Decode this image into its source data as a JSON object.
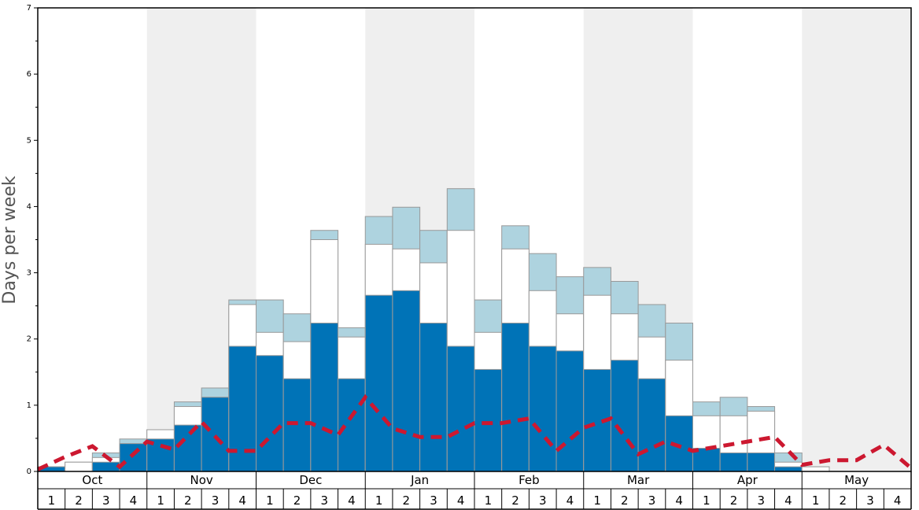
{
  "chart_data": {
    "type": "bar",
    "ylabel": "Days per week",
    "ylim": [
      0,
      7
    ],
    "yticks": [
      0,
      1,
      2,
      3,
      4,
      5,
      6,
      7
    ],
    "months": [
      "Oct",
      "Nov",
      "Dec",
      "Jan",
      "Feb",
      "Mar",
      "Apr",
      "May"
    ],
    "weeks": [
      "1",
      "2",
      "3",
      "4"
    ],
    "shaded_months": [
      "Nov",
      "Jan",
      "Mar",
      "May"
    ],
    "colors": {
      "base": "#0073b7",
      "middle": "#ffffff",
      "top": "#aed3df",
      "dashed": "#cc1830",
      "shade": "#efefef"
    },
    "series": [
      {
        "values": [
          0.07,
          0.0,
          0.14,
          0.42,
          0.49,
          0.7,
          1.12,
          1.89,
          1.75,
          1.4,
          2.24,
          1.4,
          2.66,
          2.73,
          2.24,
          1.89,
          1.54,
          2.24,
          1.89,
          1.82,
          1.54,
          1.68,
          1.4,
          0.84,
          0.35,
          0.28,
          0.28,
          0.07,
          0.0,
          0.0,
          0.0,
          0.0
        ]
      },
      {
        "values": [
          0.07,
          0.14,
          0.21,
          0.42,
          0.63,
          0.98,
          1.12,
          2.52,
          2.1,
          1.96,
          3.5,
          2.03,
          3.43,
          3.36,
          3.15,
          3.64,
          2.1,
          3.36,
          2.73,
          2.38,
          2.66,
          2.38,
          2.03,
          1.68,
          0.84,
          0.84,
          0.91,
          0.14,
          0.07,
          0.0,
          0.0,
          0.0
        ]
      },
      {
        "values": [
          0.07,
          0.14,
          0.28,
          0.49,
          0.63,
          1.05,
          1.26,
          2.59,
          2.59,
          2.38,
          3.64,
          2.17,
          3.85,
          3.99,
          3.64,
          4.27,
          2.59,
          3.71,
          3.29,
          2.94,
          3.08,
          2.87,
          2.52,
          2.24,
          1.05,
          1.12,
          0.98,
          0.28,
          0.07,
          0.0,
          0.0,
          0.0
        ]
      },
      {
        "values": [
          0.03,
          0.22,
          0.38,
          0.07,
          0.45,
          0.33,
          0.75,
          0.31,
          0.31,
          0.73,
          0.73,
          0.55,
          1.12,
          0.65,
          0.52,
          0.52,
          0.73,
          0.73,
          0.8,
          0.31,
          0.66,
          0.8,
          0.26,
          0.45,
          0.31,
          0.38,
          0.45,
          0.52,
          0.1,
          0.17,
          0.17,
          0.4,
          0.05
        ]
      }
    ]
  }
}
